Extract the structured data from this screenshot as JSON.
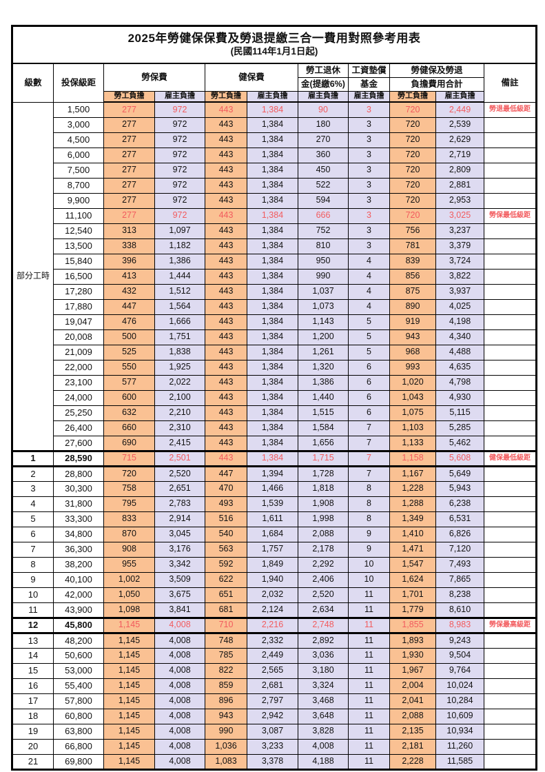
{
  "title": "2025年勞健保保費及勞退提繳三合一費用對照參考用表",
  "subtitle": "(民國114年1月1日起)",
  "colors": {
    "employee_column_bg": "#FAC193",
    "employer_column_bg": "#DEDBF1",
    "highlight_red": "#F25B5E",
    "grid_border": "#000000"
  },
  "header": {
    "level": "級數",
    "bracket": "投保級距",
    "labor_ins": "勞保費",
    "health_ins": "健保費",
    "pension_l1": "勞工退休",
    "pension_l2": "金(提繳6%)",
    "fund_l1": "工資墊償",
    "fund_l2": "基金",
    "total_l1": "勞健保及勞退",
    "total_l2": "負擔費用合計",
    "note": "備註",
    "employee": "勞工負擔",
    "employer": "雇主負擔"
  },
  "table": {
    "part_time_label": "部分工時",
    "part_time_rowspan": 23,
    "rows": [
      {
        "level": "",
        "bracket": "1,500",
        "values": [
          "277",
          "972",
          "443",
          "1,384",
          "90",
          "3",
          "720",
          "2,449"
        ],
        "note": "勞退最低級距",
        "red": true
      },
      {
        "level": "",
        "bracket": "3,000",
        "values": [
          "277",
          "972",
          "443",
          "1,384",
          "180",
          "3",
          "720",
          "2,539"
        ],
        "note": ""
      },
      {
        "level": "",
        "bracket": "4,500",
        "values": [
          "277",
          "972",
          "443",
          "1,384",
          "270",
          "3",
          "720",
          "2,629"
        ],
        "note": ""
      },
      {
        "level": "",
        "bracket": "6,000",
        "values": [
          "277",
          "972",
          "443",
          "1,384",
          "360",
          "3",
          "720",
          "2,719"
        ],
        "note": ""
      },
      {
        "level": "",
        "bracket": "7,500",
        "values": [
          "277",
          "972",
          "443",
          "1,384",
          "450",
          "3",
          "720",
          "2,809"
        ],
        "note": ""
      },
      {
        "level": "",
        "bracket": "8,700",
        "values": [
          "277",
          "972",
          "443",
          "1,384",
          "522",
          "3",
          "720",
          "2,881"
        ],
        "note": ""
      },
      {
        "level": "",
        "bracket": "9,900",
        "values": [
          "277",
          "972",
          "443",
          "1,384",
          "594",
          "3",
          "720",
          "2,953"
        ],
        "note": ""
      },
      {
        "level": "",
        "bracket": "11,100",
        "values": [
          "277",
          "972",
          "443",
          "1,384",
          "666",
          "3",
          "720",
          "3,025"
        ],
        "note": "勞保最低級距",
        "red": true
      },
      {
        "level": "",
        "bracket": "12,540",
        "values": [
          "313",
          "1,097",
          "443",
          "1,384",
          "752",
          "3",
          "756",
          "3,237"
        ],
        "note": ""
      },
      {
        "level": "",
        "bracket": "13,500",
        "values": [
          "338",
          "1,182",
          "443",
          "1,384",
          "810",
          "3",
          "781",
          "3,379"
        ],
        "note": ""
      },
      {
        "level": "",
        "bracket": "15,840",
        "values": [
          "396",
          "1,386",
          "443",
          "1,384",
          "950",
          "4",
          "839",
          "3,724"
        ],
        "note": ""
      },
      {
        "level": "",
        "bracket": "16,500",
        "values": [
          "413",
          "1,444",
          "443",
          "1,384",
          "990",
          "4",
          "856",
          "3,822"
        ],
        "note": ""
      },
      {
        "level": "",
        "bracket": "17,280",
        "values": [
          "432",
          "1,512",
          "443",
          "1,384",
          "1,037",
          "4",
          "875",
          "3,937"
        ],
        "note": ""
      },
      {
        "level": "",
        "bracket": "17,880",
        "values": [
          "447",
          "1,564",
          "443",
          "1,384",
          "1,073",
          "4",
          "890",
          "4,025"
        ],
        "note": ""
      },
      {
        "level": "",
        "bracket": "19,047",
        "values": [
          "476",
          "1,666",
          "443",
          "1,384",
          "1,143",
          "5",
          "919",
          "4,198"
        ],
        "note": ""
      },
      {
        "level": "",
        "bracket": "20,008",
        "values": [
          "500",
          "1,751",
          "443",
          "1,384",
          "1,200",
          "5",
          "943",
          "4,340"
        ],
        "note": ""
      },
      {
        "level": "",
        "bracket": "21,009",
        "values": [
          "525",
          "1,838",
          "443",
          "1,384",
          "1,261",
          "5",
          "968",
          "4,488"
        ],
        "note": ""
      },
      {
        "level": "",
        "bracket": "22,000",
        "values": [
          "550",
          "1,925",
          "443",
          "1,384",
          "1,320",
          "6",
          "993",
          "4,635"
        ],
        "note": ""
      },
      {
        "level": "",
        "bracket": "23,100",
        "values": [
          "577",
          "2,022",
          "443",
          "1,384",
          "1,386",
          "6",
          "1,020",
          "4,798"
        ],
        "note": ""
      },
      {
        "level": "",
        "bracket": "24,000",
        "values": [
          "600",
          "2,100",
          "443",
          "1,384",
          "1,440",
          "6",
          "1,043",
          "4,930"
        ],
        "note": ""
      },
      {
        "level": "",
        "bracket": "25,250",
        "values": [
          "632",
          "2,210",
          "443",
          "1,384",
          "1,515",
          "6",
          "1,075",
          "5,115"
        ],
        "note": ""
      },
      {
        "level": "",
        "bracket": "26,400",
        "values": [
          "660",
          "2,310",
          "443",
          "1,384",
          "1,584",
          "7",
          "1,103",
          "5,285"
        ],
        "note": ""
      },
      {
        "level": "",
        "bracket": "27,600",
        "values": [
          "690",
          "2,415",
          "443",
          "1,384",
          "1,656",
          "7",
          "1,133",
          "5,462"
        ],
        "note": ""
      },
      {
        "level": "1",
        "bracket": "28,590",
        "values": [
          "715",
          "2,501",
          "443",
          "1,384",
          "1,715",
          "7",
          "1,158",
          "5,608"
        ],
        "note": "健保最低級距",
        "red": true,
        "bold": true,
        "thick": true
      },
      {
        "level": "2",
        "bracket": "28,800",
        "values": [
          "720",
          "2,520",
          "447",
          "1,394",
          "1,728",
          "7",
          "1,167",
          "5,649"
        ],
        "note": ""
      },
      {
        "level": "3",
        "bracket": "30,300",
        "values": [
          "758",
          "2,651",
          "470",
          "1,466",
          "1,818",
          "8",
          "1,228",
          "5,943"
        ],
        "note": ""
      },
      {
        "level": "4",
        "bracket": "31,800",
        "values": [
          "795",
          "2,783",
          "493",
          "1,539",
          "1,908",
          "8",
          "1,288",
          "6,238"
        ],
        "note": ""
      },
      {
        "level": "5",
        "bracket": "33,300",
        "values": [
          "833",
          "2,914",
          "516",
          "1,611",
          "1,998",
          "8",
          "1,349",
          "6,531"
        ],
        "note": ""
      },
      {
        "level": "6",
        "bracket": "34,800",
        "values": [
          "870",
          "3,045",
          "540",
          "1,684",
          "2,088",
          "9",
          "1,410",
          "6,826"
        ],
        "note": ""
      },
      {
        "level": "7",
        "bracket": "36,300",
        "values": [
          "908",
          "3,176",
          "563",
          "1,757",
          "2,178",
          "9",
          "1,471",
          "7,120"
        ],
        "note": ""
      },
      {
        "level": "8",
        "bracket": "38,200",
        "values": [
          "955",
          "3,342",
          "592",
          "1,849",
          "2,292",
          "10",
          "1,547",
          "7,493"
        ],
        "note": ""
      },
      {
        "level": "9",
        "bracket": "40,100",
        "values": [
          "1,002",
          "3,509",
          "622",
          "1,940",
          "2,406",
          "10",
          "1,624",
          "7,865"
        ],
        "note": ""
      },
      {
        "level": "10",
        "bracket": "42,000",
        "values": [
          "1,050",
          "3,675",
          "651",
          "2,032",
          "2,520",
          "11",
          "1,701",
          "8,238"
        ],
        "note": ""
      },
      {
        "level": "11",
        "bracket": "43,900",
        "values": [
          "1,098",
          "3,841",
          "681",
          "2,124",
          "2,634",
          "11",
          "1,779",
          "8,610"
        ],
        "note": ""
      },
      {
        "level": "12",
        "bracket": "45,800",
        "values": [
          "1,145",
          "4,008",
          "710",
          "2,216",
          "2,748",
          "11",
          "1,855",
          "8,983"
        ],
        "note": "勞保最高級距",
        "red": true,
        "bold": true,
        "thick": true
      },
      {
        "level": "13",
        "bracket": "48,200",
        "values": [
          "1,145",
          "4,008",
          "748",
          "2,332",
          "2,892",
          "11",
          "1,893",
          "9,243"
        ],
        "note": ""
      },
      {
        "level": "14",
        "bracket": "50,600",
        "values": [
          "1,145",
          "4,008",
          "785",
          "2,449",
          "3,036",
          "11",
          "1,930",
          "9,504"
        ],
        "note": ""
      },
      {
        "level": "15",
        "bracket": "53,000",
        "values": [
          "1,145",
          "4,008",
          "822",
          "2,565",
          "3,180",
          "11",
          "1,967",
          "9,764"
        ],
        "note": ""
      },
      {
        "level": "16",
        "bracket": "55,400",
        "values": [
          "1,145",
          "4,008",
          "859",
          "2,681",
          "3,324",
          "11",
          "2,004",
          "10,024"
        ],
        "note": ""
      },
      {
        "level": "17",
        "bracket": "57,800",
        "values": [
          "1,145",
          "4,008",
          "896",
          "2,797",
          "3,468",
          "11",
          "2,041",
          "10,284"
        ],
        "note": ""
      },
      {
        "level": "18",
        "bracket": "60,800",
        "values": [
          "1,145",
          "4,008",
          "943",
          "2,942",
          "3,648",
          "11",
          "2,088",
          "10,609"
        ],
        "note": ""
      },
      {
        "level": "19",
        "bracket": "63,800",
        "values": [
          "1,145",
          "4,008",
          "990",
          "3,087",
          "3,828",
          "11",
          "2,135",
          "10,934"
        ],
        "note": ""
      },
      {
        "level": "20",
        "bracket": "66,800",
        "values": [
          "1,145",
          "4,008",
          "1,036",
          "3,233",
          "4,008",
          "11",
          "2,181",
          "11,260"
        ],
        "note": ""
      },
      {
        "level": "21",
        "bracket": "69,800",
        "values": [
          "1,145",
          "4,008",
          "1,083",
          "3,378",
          "4,188",
          "11",
          "2,228",
          "11,585"
        ],
        "note": ""
      }
    ]
  }
}
